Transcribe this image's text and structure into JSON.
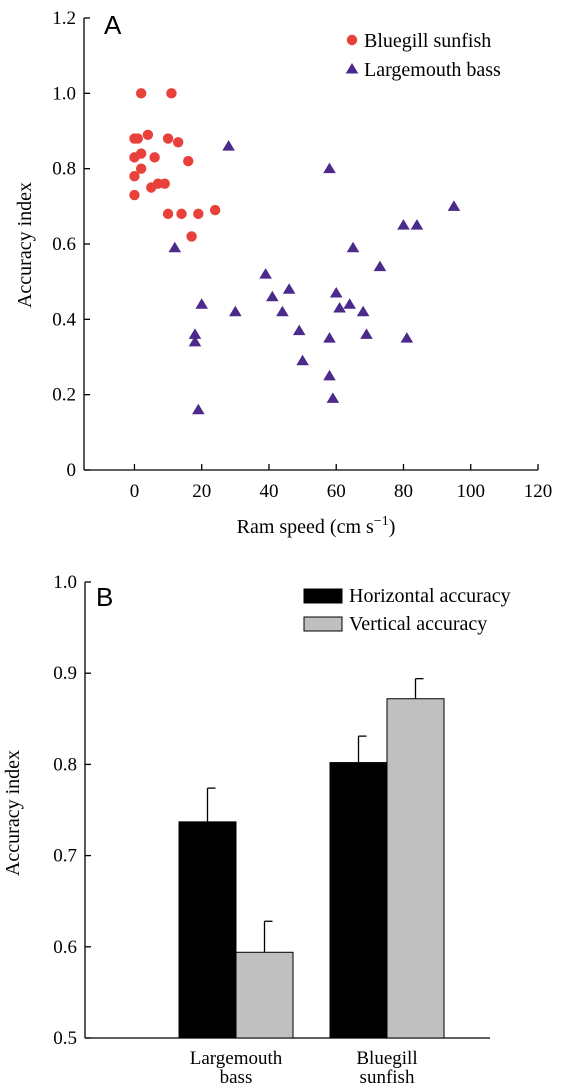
{
  "chart_data": [
    {
      "type": "scatter",
      "panel_label": "A",
      "xlabel": "Ram speed (cm s",
      "xlabel_sup": "−1",
      "xlabel_end": ")",
      "ylabel": "Accuracy index",
      "xlim": [
        -15,
        120
      ],
      "ylim": [
        0,
        1.2
      ],
      "xticks": [
        0,
        20,
        40,
        60,
        80,
        100,
        120
      ],
      "yticks": [
        0,
        0.2,
        0.4,
        0.6,
        0.8,
        1.0,
        1.2
      ],
      "ytick_labels": [
        "0",
        "0.2",
        "0.4",
        "0.6",
        "0.8",
        "1.0",
        "1.2"
      ],
      "legend_position": "top-right",
      "series": [
        {
          "name": "Bluegill sunfish",
          "marker": "circle",
          "color": "#e8403a",
          "points": [
            [
              2,
              1.0
            ],
            [
              11,
              1.0
            ],
            [
              0,
              0.88
            ],
            [
              1,
              0.88
            ],
            [
              4,
              0.89
            ],
            [
              10,
              0.88
            ],
            [
              13,
              0.87
            ],
            [
              0,
              0.83
            ],
            [
              2,
              0.84
            ],
            [
              6,
              0.83
            ],
            [
              16,
              0.82
            ],
            [
              2,
              0.8
            ],
            [
              0,
              0.78
            ],
            [
              9,
              0.76
            ],
            [
              7,
              0.76
            ],
            [
              5,
              0.75
            ],
            [
              0,
              0.73
            ],
            [
              10,
              0.68
            ],
            [
              14,
              0.68
            ],
            [
              19,
              0.68
            ],
            [
              24,
              0.69
            ],
            [
              17,
              0.62
            ]
          ]
        },
        {
          "name": "Largemouth bass",
          "marker": "triangle",
          "color": "#4b2a8c",
          "points": [
            [
              28,
              0.86
            ],
            [
              58,
              0.8
            ],
            [
              95,
              0.7
            ],
            [
              80,
              0.65
            ],
            [
              84,
              0.65
            ],
            [
              12,
              0.59
            ],
            [
              65,
              0.59
            ],
            [
              73,
              0.54
            ],
            [
              39,
              0.52
            ],
            [
              46,
              0.48
            ],
            [
              60,
              0.47
            ],
            [
              41,
              0.46
            ],
            [
              20,
              0.44
            ],
            [
              64,
              0.44
            ],
            [
              61,
              0.43
            ],
            [
              30,
              0.42
            ],
            [
              44,
              0.42
            ],
            [
              68,
              0.42
            ],
            [
              49,
              0.37
            ],
            [
              18,
              0.36
            ],
            [
              69,
              0.36
            ],
            [
              58,
              0.35
            ],
            [
              81,
              0.35
            ],
            [
              18,
              0.34
            ],
            [
              50,
              0.29
            ],
            [
              58,
              0.25
            ],
            [
              59,
              0.19
            ],
            [
              19,
              0.16
            ]
          ]
        }
      ]
    },
    {
      "type": "bar",
      "panel_label": "B",
      "ylabel": "Accuracy index",
      "ylim": [
        0.5,
        1.0
      ],
      "yticks": [
        0.5,
        0.6,
        0.7,
        0.8,
        0.9,
        1.0
      ],
      "ytick_labels": [
        "0.5",
        "0.6",
        "0.7",
        "0.8",
        "0.9",
        "1.0"
      ],
      "categories": [
        [
          "Largemouth",
          "bass"
        ],
        [
          "Bluegill",
          "sunfish"
        ]
      ],
      "legend_position": "top-right",
      "series": [
        {
          "name": "Horizontal accuracy",
          "color": "#000000",
          "values": [
            0.737,
            0.802
          ],
          "errors": [
            0.037,
            0.029
          ]
        },
        {
          "name": "Vertical accuracy",
          "color": "#c0c0c0",
          "values": [
            0.594,
            0.872
          ],
          "errors": [
            0.034,
            0.022
          ]
        }
      ]
    }
  ]
}
